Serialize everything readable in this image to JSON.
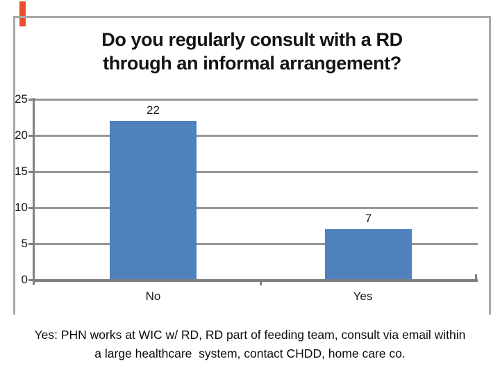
{
  "slide": {
    "accent": {
      "color": "#e8502d"
    },
    "caption": {
      "line1": "Yes: PHN works at WIC w/ RD, RD part of feeding team, consult via email within",
      "line2": "a large healthcare  system, contact CHDD, home care co."
    }
  },
  "chart_data": {
    "type": "bar",
    "title": "Do you regularly consult with a RD through an informal arrangement?",
    "title_line1": "Do you regularly consult with a RD",
    "title_line2": "through an informal arrangement?",
    "categories": [
      "No",
      "Yes"
    ],
    "values": [
      22,
      7
    ],
    "data_labels": [
      "22",
      "7"
    ],
    "xlabel": "",
    "ylabel": "",
    "ylim": [
      0,
      25
    ],
    "yticks": [
      0,
      5,
      10,
      15,
      20,
      25
    ],
    "grid": true,
    "legend": "none",
    "colors": {
      "bar": "#4f81bd",
      "gridline": "#969696",
      "axis": "#7f7f7f",
      "frame_border": "#a9a9a9",
      "title_text": "#141414"
    }
  }
}
